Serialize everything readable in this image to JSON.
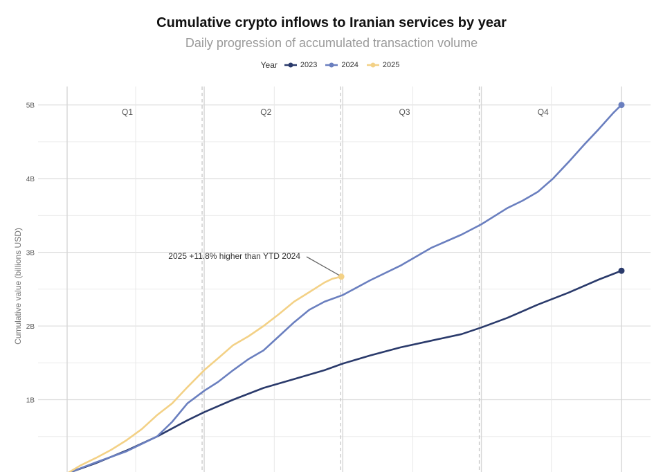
{
  "chart_data": {
    "type": "line",
    "title": "Cumulative crypto inflows to Iranian services by year",
    "subtitle": "Daily progression of accumulated transaction volume",
    "ylabel": "Cumulative value (billions USD)",
    "xlabel": "",
    "ylim": [
      0,
      5.25
    ],
    "yticks": [
      1,
      2,
      3,
      4,
      5
    ],
    "ytick_labels": [
      "1B",
      "2B",
      "3B",
      "4B",
      "5B"
    ],
    "legend": {
      "title": "Year",
      "position": "top-center",
      "entries": [
        "2023",
        "2024",
        "2025"
      ]
    },
    "quarters": [
      "Q1",
      "Q2",
      "Q3",
      "Q4"
    ],
    "colors": {
      "2023": "#2a3a6b",
      "2024": "#6a7fbf",
      "2025": "#f3d186"
    },
    "x_unit": "day of year",
    "series": [
      {
        "name": "2023",
        "x": [
          1,
          20,
          40,
          60,
          80,
          91,
          110,
          130,
          150,
          170,
          182,
          200,
          220,
          240,
          260,
          273,
          290,
          310,
          330,
          350,
          365
        ],
        "values": [
          0.0,
          0.14,
          0.31,
          0.5,
          0.72,
          0.83,
          1.0,
          1.16,
          1.28,
          1.4,
          1.49,
          1.6,
          1.71,
          1.8,
          1.89,
          1.98,
          2.11,
          2.29,
          2.45,
          2.63,
          2.75
        ]
      },
      {
        "name": "2024",
        "x": [
          1,
          20,
          40,
          60,
          70,
          80,
          91,
          100,
          110,
          120,
          130,
          140,
          150,
          160,
          170,
          182,
          200,
          220,
          240,
          260,
          273,
          290,
          300,
          310,
          320,
          330,
          340,
          350,
          360,
          365
        ],
        "values": [
          0.0,
          0.15,
          0.3,
          0.5,
          0.7,
          0.95,
          1.12,
          1.24,
          1.4,
          1.55,
          1.67,
          1.86,
          2.05,
          2.22,
          2.33,
          2.42,
          2.62,
          2.82,
          3.06,
          3.24,
          3.38,
          3.6,
          3.7,
          3.82,
          4.0,
          4.22,
          4.45,
          4.67,
          4.9,
          5.0
        ]
      },
      {
        "name": "2025",
        "x": [
          1,
          10,
          20,
          30,
          40,
          50,
          60,
          70,
          80,
          91,
          100,
          110,
          120,
          130,
          140,
          150,
          160,
          170,
          175,
          181
        ],
        "values": [
          0.0,
          0.11,
          0.21,
          0.32,
          0.45,
          0.6,
          0.79,
          0.95,
          1.17,
          1.4,
          1.56,
          1.74,
          1.86,
          2.0,
          2.16,
          2.33,
          2.46,
          2.59,
          2.64,
          2.67
        ]
      }
    ],
    "annotations": [
      {
        "text": "2025 +11.8% higher than YTD 2024",
        "x": 181,
        "y": 2.67
      }
    ]
  }
}
